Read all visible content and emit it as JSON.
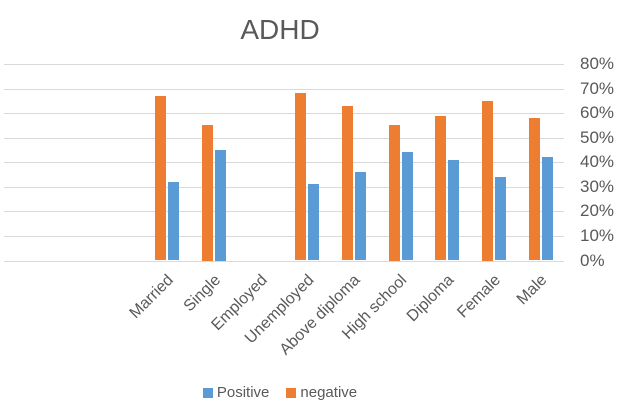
{
  "chart_data": {
    "type": "bar",
    "title": "ADHD",
    "categories": [
      "Married",
      "Single",
      "Employed",
      "Unemployed",
      "Above diploma",
      "High school",
      "Diploma",
      "Female",
      "Male"
    ],
    "series": [
      {
        "name": "Positive",
        "color": "#5B9BD5",
        "values": [
          32,
          45,
          0,
          31,
          36,
          44,
          41,
          34,
          42
        ]
      },
      {
        "name": "negative",
        "color": "#ED7D31",
        "values": [
          67,
          55,
          0,
          68,
          63,
          55,
          59,
          65,
          58
        ]
      }
    ],
    "bar_order_left_to_right": [
      "negative",
      "Positive"
    ],
    "y_axis": {
      "side": "right",
      "min": 0,
      "max": 80,
      "tick_step": 10,
      "tick_labels": [
        "0%",
        "10%",
        "20%",
        "30%",
        "40%",
        "50%",
        "60%",
        "70%",
        "80%"
      ]
    },
    "x_axis": {
      "label_rotation_deg": 45
    },
    "legend": {
      "position": "bottom",
      "entries": [
        "Positive",
        "negative"
      ]
    },
    "grid": true,
    "empty_leading_category_slots": 3
  },
  "colors": {
    "text": "#595959",
    "gridline": "#D9D9D9",
    "background": "#FFFFFF"
  }
}
